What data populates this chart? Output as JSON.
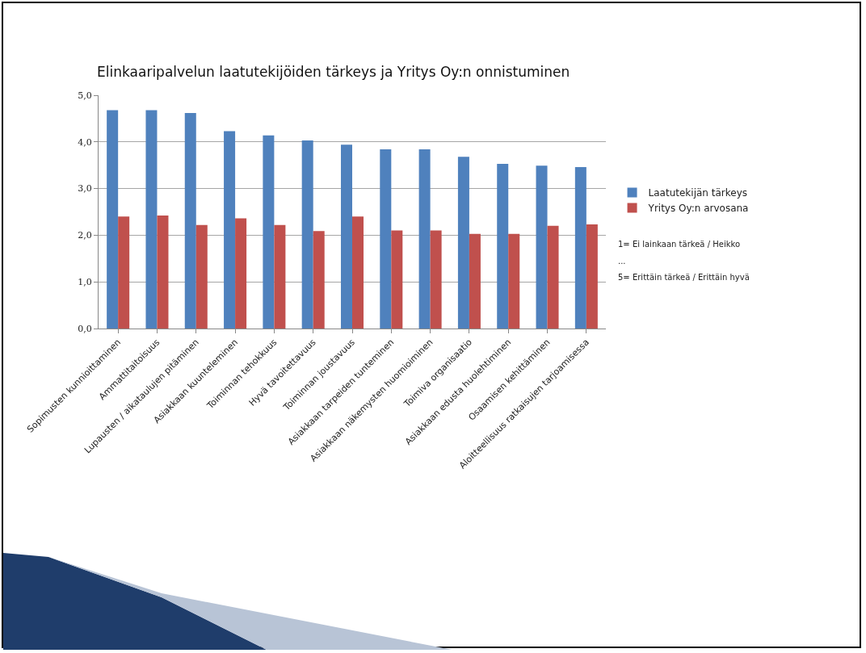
{
  "chart_data": {
    "type": "bar",
    "title": "Elinkaaripalvelun laatutekijöiden tärkeys ja Yritys Oy:n onnistuminen",
    "categories": [
      "Sopimusten kunnioittaminen",
      "Ammattitaitoisuus",
      "Lupausten / aikataulujen pitäminen",
      "Asiakkaan kuunteleminen",
      "Toiminnan tehokkuus",
      "Hyvä tavoitettavuus",
      "Toiminnan joustavuus",
      "Asiakkaan tarpeiden tunteminen",
      "Asiakkaan näkemysten huomioiminen",
      "Toimiva organisaatio",
      "Asiakkaan edusta huolehtiminen",
      "Osaamisen kehittäminen",
      "Aloitteellisuus ratkaisujen tarjoamisessa"
    ],
    "series": [
      {
        "name": "Laatutekijän tärkeys",
        "color": "#4f81bd",
        "values": [
          4.68,
          4.68,
          4.62,
          4.23,
          4.14,
          4.03,
          3.94,
          3.84,
          3.84,
          3.68,
          3.53,
          3.49,
          3.46
        ]
      },
      {
        "name": "Yritys Oy:n arvosana",
        "color": "#c0504d",
        "values": [
          2.4,
          2.42,
          2.22,
          2.36,
          2.22,
          2.09,
          2.4,
          2.1,
          2.1,
          2.03,
          2.03,
          2.2,
          2.23
        ]
      }
    ],
    "ylim": [
      0,
      5
    ],
    "yticks": [
      {
        "value": 0,
        "label": "0,0"
      },
      {
        "value": 1,
        "label": "1,0"
      },
      {
        "value": 2,
        "label": "2,0"
      },
      {
        "value": 3,
        "label": "3,0"
      },
      {
        "value": 4,
        "label": "4,0"
      },
      {
        "value": 5,
        "label": "5,0"
      }
    ],
    "grid": "y",
    "legend": "right",
    "annotations": [
      "1= Ei lainkaan tärkeä / Heikko",
      "...",
      "5= Erittäin tärkeä / Erittäin hyvä"
    ]
  }
}
